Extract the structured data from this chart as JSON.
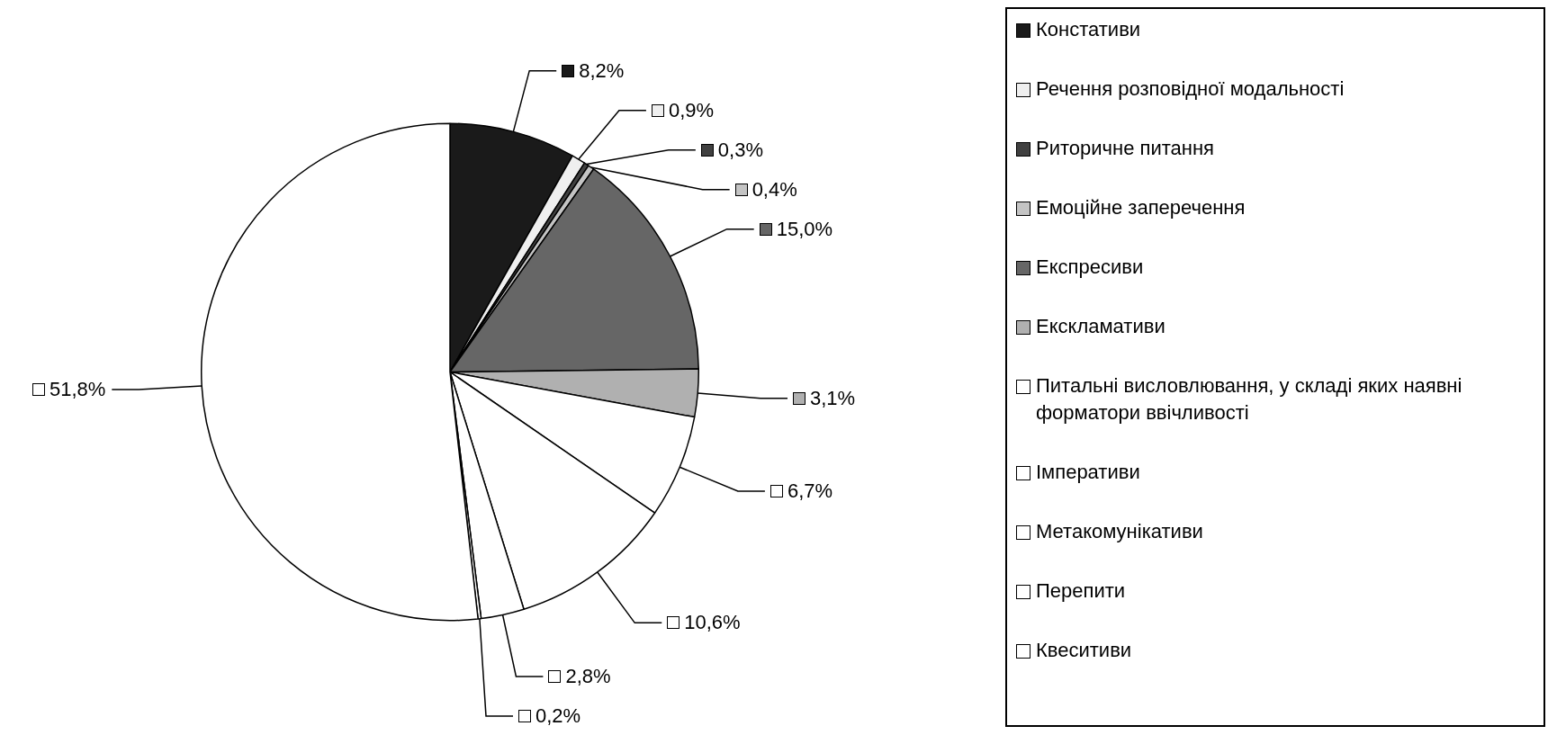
{
  "chart_data": {
    "type": "pie",
    "categories": [
      "Констативи",
      "Речення розповідної модальності",
      "Риторичне питання",
      "Емоційне заперечення",
      "Експресиви",
      "Екскламативи",
      "Питальні висловлювання, у складі яких наявні форматори ввічливості",
      "Імперативи",
      "Метакомунікативи",
      "Перепити",
      "Квеситиви"
    ],
    "values": [
      8.2,
      0.9,
      0.3,
      0.4,
      15.0,
      3.1,
      6.7,
      10.6,
      2.8,
      0.2,
      51.8
    ],
    "value_labels": [
      "8,2%",
      "0,9%",
      "0,3%",
      "0,4%",
      "15,0%",
      "3,1%",
      "6,7%",
      "10,6%",
      "2,8%",
      "0,2%",
      "51,8%"
    ],
    "colors": [
      "#1a1a1a",
      "#efefef",
      "#404040",
      "#c4c4c4",
      "#666666",
      "#b0b0b0",
      "#ffffff",
      "#ffffff",
      "#ffffff",
      "#ffffff",
      "#ffffff"
    ],
    "legend": "right"
  }
}
